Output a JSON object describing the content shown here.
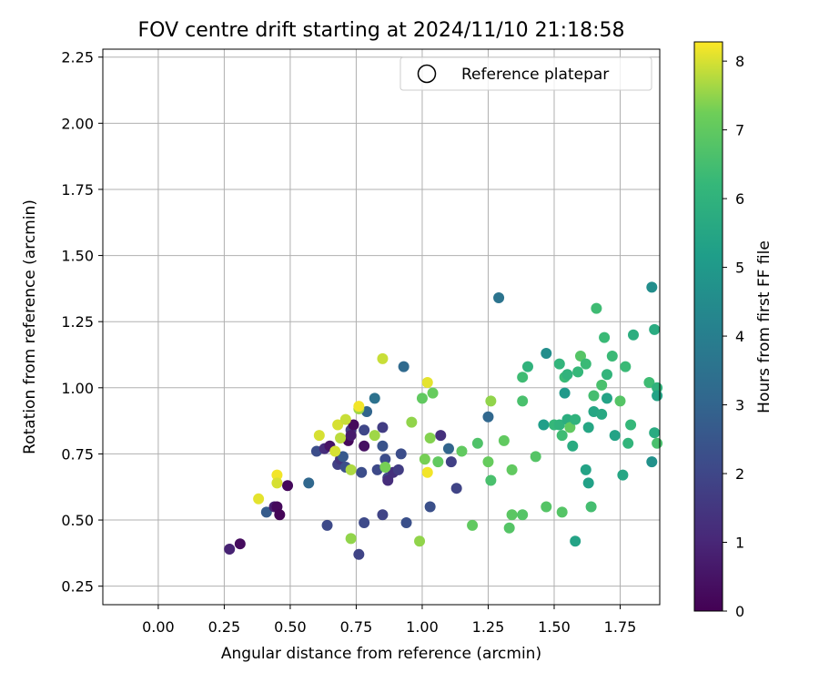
{
  "chart_data": {
    "type": "scatter",
    "title": "FOV centre drift starting at 2024/11/10 21:18:58",
    "xlabel": "Angular distance from reference (arcmin)",
    "ylabel": "Rotation from reference (arcmin)",
    "xlim": [
      -0.21,
      1.9
    ],
    "ylim": [
      0.18,
      2.28
    ],
    "xticks": [
      "0.00",
      "0.25",
      "0.50",
      "0.75",
      "1.00",
      "1.25",
      "1.50",
      "1.75"
    ],
    "xtick_values": [
      0,
      0.25,
      0.5,
      0.75,
      1.0,
      1.25,
      1.5,
      1.75
    ],
    "yticks": [
      "0.25",
      "0.50",
      "0.75",
      "1.00",
      "1.25",
      "1.50",
      "1.75",
      "2.00",
      "2.25"
    ],
    "ytick_values": [
      0.25,
      0.5,
      0.75,
      1.0,
      1.25,
      1.5,
      1.75,
      2.0,
      2.25
    ],
    "grid": true,
    "legend": {
      "position": "top-right",
      "entries": [
        "Reference platepar"
      ]
    },
    "colorbar": {
      "label": "Hours from first FF file",
      "range": [
        0,
        8.28
      ],
      "ticks": [
        "0",
        "1",
        "2",
        "3",
        "4",
        "5",
        "6",
        "7",
        "8"
      ],
      "tick_values": [
        0,
        1,
        2,
        3,
        4,
        5,
        6,
        7,
        8
      ],
      "colormap": "viridis"
    },
    "points": [
      [
        0.27,
        0.39,
        0.9
      ],
      [
        0.31,
        0.41,
        0.3
      ],
      [
        0.41,
        0.53,
        2.7
      ],
      [
        0.44,
        0.55,
        0.8
      ],
      [
        0.45,
        0.55,
        0.2
      ],
      [
        0.46,
        0.52,
        0.1
      ],
      [
        0.49,
        0.63,
        0.2
      ],
      [
        0.57,
        0.64,
        3.1
      ],
      [
        0.6,
        0.76,
        2.2
      ],
      [
        0.63,
        0.77,
        1.2
      ],
      [
        0.64,
        0.48,
        2.1
      ],
      [
        0.65,
        0.78,
        0.5
      ],
      [
        0.68,
        0.71,
        1.8
      ],
      [
        0.69,
        0.73,
        1.4
      ],
      [
        0.7,
        0.74,
        2.6
      ],
      [
        0.71,
        0.7,
        2.3
      ],
      [
        0.72,
        0.8,
        0.2
      ],
      [
        0.73,
        0.84,
        1.5
      ],
      [
        0.73,
        0.82,
        0.7
      ],
      [
        0.74,
        0.86,
        0.2
      ],
      [
        0.76,
        0.37,
        1.9
      ],
      [
        0.77,
        0.68,
        2.2
      ],
      [
        0.78,
        0.78,
        0.4
      ],
      [
        0.78,
        0.84,
        2.0
      ],
      [
        0.78,
        0.49,
        2.1
      ],
      [
        0.79,
        0.91,
        3.0
      ],
      [
        0.82,
        0.96,
        3.5
      ],
      [
        0.83,
        0.69,
        2.1
      ],
      [
        0.85,
        0.85,
        1.7
      ],
      [
        0.85,
        0.78,
        2.4
      ],
      [
        0.85,
        0.52,
        1.9
      ],
      [
        0.86,
        0.73,
        2.2
      ],
      [
        0.87,
        0.66,
        2.0
      ],
      [
        0.87,
        0.65,
        1.2
      ],
      [
        0.89,
        0.68,
        1.3
      ],
      [
        0.91,
        0.69,
        1.7
      ],
      [
        0.92,
        0.75,
        2.2
      ],
      [
        0.93,
        1.08,
        3.2
      ],
      [
        0.94,
        0.49,
        2.3
      ],
      [
        1.03,
        0.55,
        2.3
      ],
      [
        1.07,
        0.82,
        1.3
      ],
      [
        1.1,
        0.77,
        3.0
      ],
      [
        1.11,
        0.72,
        1.8
      ],
      [
        1.13,
        0.62,
        1.9
      ],
      [
        1.25,
        0.89,
        3.1
      ],
      [
        1.29,
        1.34,
        3.6
      ],
      [
        0.38,
        0.58,
        8.1
      ],
      [
        0.45,
        0.67,
        8.2
      ],
      [
        0.45,
        0.64,
        8.0
      ],
      [
        0.61,
        0.82,
        8.0
      ],
      [
        0.67,
        0.76,
        8.0
      ],
      [
        0.68,
        0.86,
        8.0
      ],
      [
        0.69,
        0.81,
        7.8
      ],
      [
        0.71,
        0.88,
        7.9
      ],
      [
        0.73,
        0.69,
        7.7
      ],
      [
        0.73,
        0.43,
        7.5
      ],
      [
        0.76,
        0.92,
        7.6
      ],
      [
        0.76,
        0.93,
        8.2
      ],
      [
        0.82,
        0.82,
        7.6
      ],
      [
        0.85,
        1.11,
        7.9
      ],
      [
        0.86,
        0.7,
        7.3
      ],
      [
        0.96,
        0.87,
        7.5
      ],
      [
        0.99,
        0.42,
        7.5
      ],
      [
        1.0,
        0.96,
        7.0
      ],
      [
        1.01,
        0.73,
        7.3
      ],
      [
        1.02,
        1.02,
        8.1
      ],
      [
        1.02,
        0.68,
        8.2
      ],
      [
        1.03,
        0.81,
        7.4
      ],
      [
        1.04,
        0.98,
        7.1
      ],
      [
        1.06,
        0.72,
        7.0
      ],
      [
        1.15,
        0.76,
        7.0
      ],
      [
        1.19,
        0.48,
        7.0
      ],
      [
        1.21,
        0.79,
        6.7
      ],
      [
        1.25,
        0.72,
        7.1
      ],
      [
        1.26,
        0.95,
        7.5
      ],
      [
        1.26,
        0.65,
        6.6
      ],
      [
        1.31,
        0.8,
        7.0
      ],
      [
        1.33,
        0.47,
        6.8
      ],
      [
        1.34,
        0.69,
        7.0
      ],
      [
        1.34,
        0.52,
        6.9
      ],
      [
        1.38,
        0.52,
        6.8
      ],
      [
        1.38,
        1.04,
        6.4
      ],
      [
        1.38,
        0.95,
        6.6
      ],
      [
        1.4,
        1.08,
        6.0
      ],
      [
        1.43,
        0.74,
        6.8
      ],
      [
        1.46,
        0.86,
        5.2
      ],
      [
        1.47,
        0.55,
        6.8
      ],
      [
        1.47,
        1.13,
        4.6
      ],
      [
        1.5,
        0.86,
        6.2
      ],
      [
        1.52,
        1.09,
        6.1
      ],
      [
        1.52,
        0.86,
        6.0
      ],
      [
        1.53,
        0.82,
        6.4
      ],
      [
        1.53,
        0.53,
        6.8
      ],
      [
        1.54,
        0.98,
        5.0
      ],
      [
        1.54,
        1.04,
        6.3
      ],
      [
        1.55,
        0.88,
        5.8
      ],
      [
        1.55,
        1.05,
        6.0
      ],
      [
        1.56,
        0.85,
        7.0
      ],
      [
        1.57,
        0.78,
        5.7
      ],
      [
        1.58,
        0.42,
        5.4
      ],
      [
        1.58,
        0.88,
        6.0
      ],
      [
        1.59,
        1.06,
        6.2
      ],
      [
        1.6,
        1.12,
        6.8
      ],
      [
        1.62,
        0.69,
        5.4
      ],
      [
        1.62,
        1.09,
        6.3
      ],
      [
        1.63,
        0.85,
        5.5
      ],
      [
        1.63,
        0.64,
        5.3
      ],
      [
        1.64,
        0.55,
        6.5
      ],
      [
        1.65,
        0.97,
        6.5
      ],
      [
        1.65,
        0.91,
        5.5
      ],
      [
        1.66,
        1.3,
        6.4
      ],
      [
        1.68,
        0.9,
        5.6
      ],
      [
        1.68,
        1.01,
        6.6
      ],
      [
        1.69,
        1.19,
        6.3
      ],
      [
        1.7,
        0.96,
        5.4
      ],
      [
        1.7,
        1.05,
        6.1
      ],
      [
        1.72,
        1.12,
        6.3
      ],
      [
        1.73,
        0.82,
        5.4
      ],
      [
        1.75,
        0.95,
        6.8
      ],
      [
        1.76,
        0.67,
        5.5
      ],
      [
        1.77,
        1.08,
        6.3
      ],
      [
        1.78,
        0.79,
        6.1
      ],
      [
        1.79,
        0.86,
        6.2
      ],
      [
        1.8,
        1.2,
        5.8
      ],
      [
        1.86,
        1.02,
        6.4
      ],
      [
        1.87,
        1.38,
        4.6
      ],
      [
        1.87,
        0.72,
        4.7
      ],
      [
        1.88,
        1.22,
        5.7
      ],
      [
        1.88,
        0.83,
        5.7
      ],
      [
        1.89,
        1.0,
        6.0
      ],
      [
        1.89,
        0.97,
        5.4
      ],
      [
        1.89,
        0.79,
        6.6
      ]
    ]
  }
}
